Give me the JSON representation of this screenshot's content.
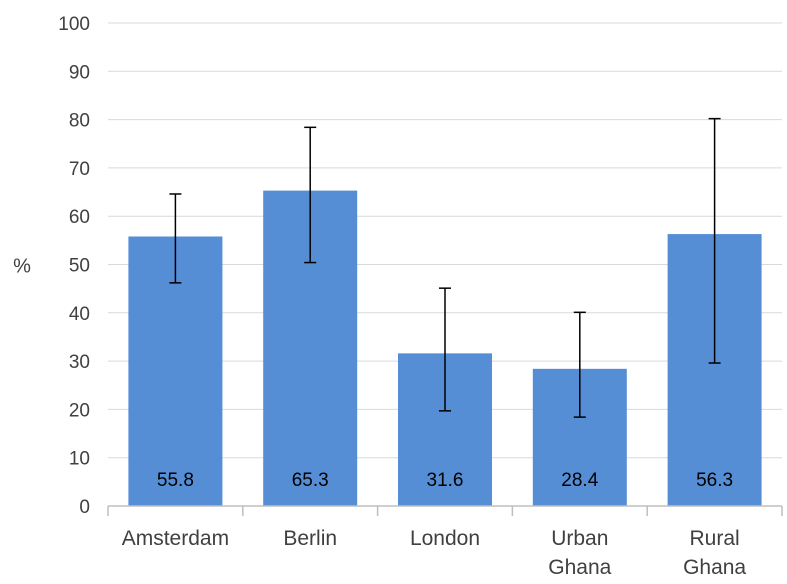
{
  "chart_data": {
    "type": "bar",
    "title": "",
    "xlabel": "",
    "ylabel": "%",
    "ylim": [
      0,
      100
    ],
    "yticks": [
      0,
      10,
      20,
      30,
      40,
      50,
      60,
      70,
      80,
      90,
      100
    ],
    "grid": true,
    "categories": [
      [
        "Amsterdam"
      ],
      [
        "Berlin"
      ],
      [
        "London"
      ],
      [
        "Urban",
        "Ghana"
      ],
      [
        "Rural",
        "Ghana"
      ]
    ],
    "values": [
      55.8,
      65.3,
      31.6,
      28.4,
      56.3
    ],
    "data_labels": [
      "55.8",
      "65.3",
      "31.6",
      "28.4",
      "56.3"
    ],
    "error_bars": [
      {
        "low": 46.2,
        "high": 64.6
      },
      {
        "low": 50.4,
        "high": 78.4
      },
      {
        "low": 19.7,
        "high": 45.1
      },
      {
        "low": 18.4,
        "high": 40.1
      },
      {
        "low": 29.6,
        "high": 80.2
      }
    ],
    "bar_color": "#558ed5",
    "grid_color": "#d9d9d9",
    "error_bar_color": "#000000"
  }
}
